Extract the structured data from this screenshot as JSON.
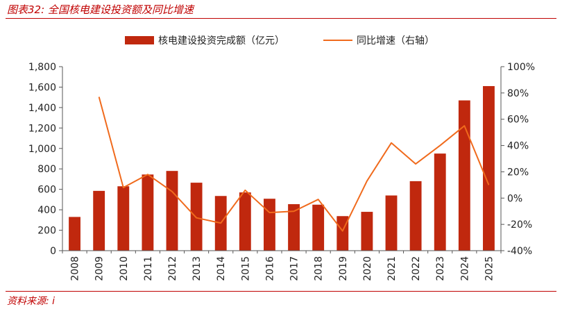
{
  "header": {
    "title": "图表32:  全国核电建设投资额及同比增速"
  },
  "footer": {
    "source": "资料来源:  i"
  },
  "chart_data": {
    "type": "bar",
    "categories": [
      "2008",
      "2009",
      "2010",
      "2011",
      "2012",
      "2013",
      "2014",
      "2015",
      "2016",
      "2017",
      "2018",
      "2019",
      "2020",
      "2021",
      "2022",
      "2023",
      "2024",
      "2025"
    ],
    "series": [
      {
        "name": "核电建设投资完成额（亿元）",
        "type": "bar",
        "axis": "left",
        "color": "#c0280e",
        "values": [
          330,
          585,
          630,
          745,
          780,
          665,
          535,
          570,
          508,
          455,
          450,
          338,
          380,
          540,
          680,
          950,
          1470,
          1610
        ]
      },
      {
        "name": "同比增速（右轴）",
        "type": "line",
        "axis": "right",
        "color": "#f06a1c",
        "values": [
          null,
          77,
          8,
          18,
          5,
          -15,
          -19,
          6,
          -11,
          -10,
          -1,
          -25,
          13,
          42,
          26,
          40,
          55,
          10
        ]
      }
    ],
    "y_left": {
      "min": 0,
      "max": 1800,
      "step": 200,
      "ticks": [
        "0",
        "200",
        "400",
        "600",
        "800",
        "1,000",
        "1,200",
        "1,400",
        "1,600",
        "1,800"
      ]
    },
    "y_right": {
      "min": -40,
      "max": 100,
      "step": 20,
      "ticks": [
        "-40%",
        "-20%",
        "0%",
        "20%",
        "40%",
        "60%",
        "80%",
        "100%"
      ]
    },
    "legend": "top-center",
    "grid": false
  }
}
